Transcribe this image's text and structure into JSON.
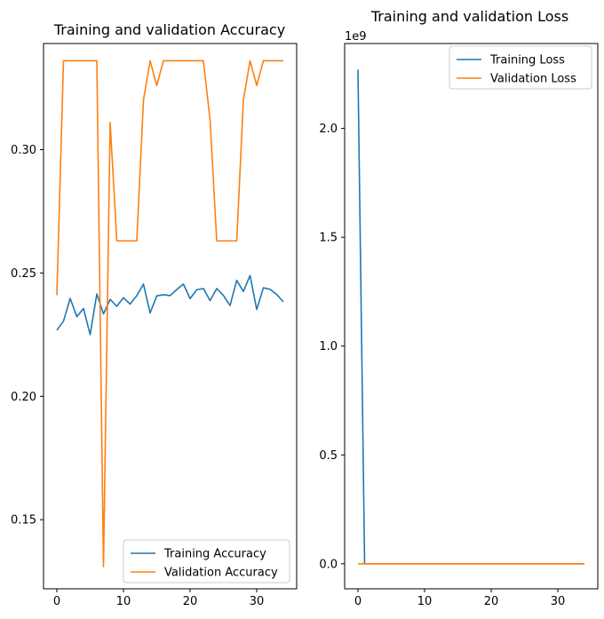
{
  "chart_data": [
    {
      "type": "line",
      "title": "Training and validation Accuracy",
      "xlabel": "",
      "ylabel": "",
      "xlim": [
        -2,
        36
      ],
      "ylim": [
        0.122,
        0.343
      ],
      "xticks": [
        0,
        10,
        20,
        30
      ],
      "yticks": [
        0.15,
        0.2,
        0.25,
        0.3
      ],
      "ytick_labels": [
        "0.15",
        "0.20",
        "0.25",
        "0.30"
      ],
      "legend": "lower-right",
      "grid": false,
      "series": [
        {
          "name": "Training Accuracy",
          "color": "#1f77b4",
          "x": [
            0,
            1,
            2,
            3,
            4,
            5,
            6,
            7,
            8,
            9,
            10,
            11,
            12,
            13,
            14,
            15,
            16,
            17,
            18,
            19,
            20,
            21,
            22,
            23,
            24,
            25,
            26,
            27,
            28,
            29,
            30,
            31,
            32,
            33,
            34
          ],
          "values": [
            0.2268,
            0.2305,
            0.2397,
            0.2323,
            0.2356,
            0.225,
            0.2415,
            0.2334,
            0.2393,
            0.2365,
            0.24,
            0.2374,
            0.2408,
            0.2455,
            0.2338,
            0.2407,
            0.2412,
            0.2408,
            0.2433,
            0.2455,
            0.2396,
            0.2432,
            0.2437,
            0.2388,
            0.2437,
            0.2409,
            0.2368,
            0.247,
            0.2425,
            0.249,
            0.2352,
            0.244,
            0.2434,
            0.2413,
            0.2383
          ]
        },
        {
          "name": "Validation Accuracy",
          "color": "#ff7f0e",
          "x": [
            0,
            1,
            2,
            3,
            4,
            5,
            6,
            7,
            8,
            9,
            10,
            11,
            12,
            13,
            14,
            15,
            16,
            17,
            18,
            19,
            20,
            21,
            22,
            23,
            24,
            25,
            26,
            27,
            28,
            29,
            30,
            31,
            32,
            33,
            34
          ],
          "values": [
            0.241,
            0.336,
            0.336,
            0.336,
            0.336,
            0.336,
            0.336,
            0.131,
            0.311,
            0.263,
            0.263,
            0.263,
            0.263,
            0.32,
            0.336,
            0.326,
            0.336,
            0.336,
            0.336,
            0.336,
            0.336,
            0.336,
            0.336,
            0.312,
            0.263,
            0.263,
            0.263,
            0.263,
            0.32,
            0.336,
            0.326,
            0.336,
            0.336,
            0.336,
            0.336
          ]
        }
      ]
    },
    {
      "type": "line",
      "title": "Training and validation Loss",
      "xlabel": "",
      "ylabel": "",
      "offset_text": "1e9",
      "xlim": [
        -2,
        36
      ],
      "ylim": [
        -0.115,
        2.39
      ],
      "xticks": [
        0,
        10,
        20,
        30
      ],
      "yticks": [
        0.0,
        0.5,
        1.0,
        1.5,
        2.0
      ],
      "ytick_labels": [
        "0.0",
        "0.5",
        "1.0",
        "1.5",
        "2.0"
      ],
      "legend": "top-right",
      "grid": false,
      "series": [
        {
          "name": "Training Loss",
          "color": "#1f77b4",
          "x": [
            0,
            1,
            2,
            3,
            4,
            5,
            6,
            7,
            8,
            9,
            10,
            11,
            12,
            13,
            14,
            15,
            16,
            17,
            18,
            19,
            20,
            21,
            22,
            23,
            24,
            25,
            26,
            27,
            28,
            29,
            30,
            31,
            32,
            33,
            34
          ],
          "values": [
            2.27,
            0,
            0,
            0,
            0,
            0,
            0,
            0,
            0,
            0,
            0,
            0,
            0,
            0,
            0,
            0,
            0,
            0,
            0,
            0,
            0,
            0,
            0,
            0,
            0,
            0,
            0,
            0,
            0,
            0,
            0,
            0,
            0,
            0,
            0
          ]
        },
        {
          "name": "Validation Loss",
          "color": "#ff7f0e",
          "x": [
            0,
            1,
            2,
            3,
            4,
            5,
            6,
            7,
            8,
            9,
            10,
            11,
            12,
            13,
            14,
            15,
            16,
            17,
            18,
            19,
            20,
            21,
            22,
            23,
            24,
            25,
            26,
            27,
            28,
            29,
            30,
            31,
            32,
            33,
            34
          ],
          "values": [
            0,
            0,
            0,
            0,
            0,
            0,
            0,
            0,
            0,
            0,
            0,
            0,
            0,
            0,
            0,
            0,
            0,
            0,
            0,
            0,
            0,
            0,
            0,
            0,
            0,
            0,
            0,
            0,
            0,
            0,
            0,
            0,
            0,
            0,
            0
          ]
        }
      ]
    }
  ]
}
